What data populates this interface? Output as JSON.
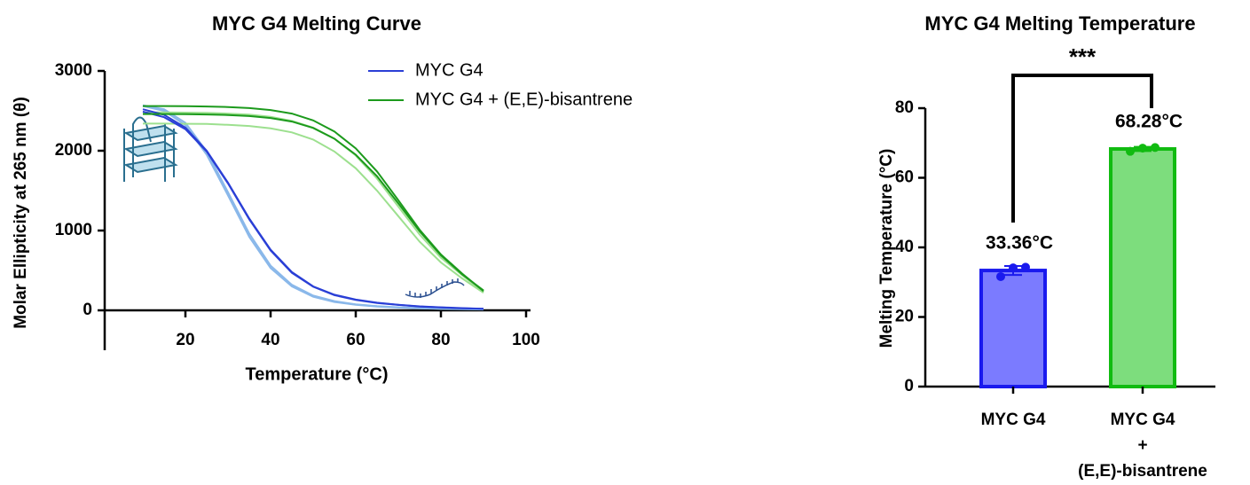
{
  "chart_data": [
    {
      "type": "line",
      "title": "MYC G4 Melting Curve",
      "xlabel": "Temperature (°C)",
      "ylabel": "Molar Ellipticity at 265 nm (θ)",
      "x": [
        10,
        15,
        20,
        25,
        30,
        35,
        40,
        45,
        50,
        55,
        60,
        65,
        70,
        75,
        80,
        85,
        90
      ],
      "xlim": [
        0,
        100
      ],
      "xticks": [
        20,
        40,
        60,
        80,
        100
      ],
      "ylim": [
        -500,
        3000
      ],
      "yticks": [
        0,
        1000,
        2000,
        3000
      ],
      "series": [
        {
          "name": "MYC G4",
          "color": "#2a3fd6",
          "values": [
            2520,
            2450,
            2290,
            2000,
            1600,
            1150,
            760,
            480,
            300,
            195,
            135,
            95,
            70,
            50,
            38,
            28,
            20
          ]
        },
        {
          "color": "#2a3fd6",
          "values": [
            2490,
            2420,
            2270,
            1990,
            1590,
            1140,
            750,
            470,
            295,
            190,
            130,
            92,
            68,
            48,
            36,
            26,
            19
          ]
        },
        {
          "color": "#8ab8ea",
          "values": [
            2570,
            2520,
            2350,
            1990,
            1480,
            960,
            560,
            320,
            185,
            115,
            75,
            52,
            38,
            28,
            20,
            15,
            12
          ]
        },
        {
          "color": "#8ab8ea",
          "values": [
            2560,
            2500,
            2320,
            1950,
            1440,
            920,
            530,
            300,
            170,
            105,
            70,
            48,
            35,
            25,
            18,
            13,
            10
          ]
        },
        {
          "name": "MYC G4 + (E,E)-bisantrene",
          "color": "#1c9a1c",
          "values": [
            2560,
            2560,
            2558,
            2555,
            2548,
            2535,
            2510,
            2465,
            2380,
            2240,
            2030,
            1740,
            1380,
            1010,
            700,
            460,
            240
          ]
        },
        {
          "color": "#1c9a1c",
          "values": [
            2460,
            2460,
            2458,
            2455,
            2448,
            2435,
            2410,
            2365,
            2285,
            2150,
            1950,
            1680,
            1340,
            990,
            690,
            450,
            250
          ]
        },
        {
          "color": "#9de08f",
          "values": [
            2340,
            2340,
            2338,
            2335,
            2325,
            2310,
            2280,
            2230,
            2140,
            1990,
            1780,
            1500,
            1180,
            860,
            600,
            400,
            220
          ]
        },
        {
          "color": "#9de08f",
          "values": [
            2480,
            2480,
            2478,
            2474,
            2466,
            2452,
            2425,
            2375,
            2290,
            2150,
            1940,
            1650,
            1300,
            950,
            660,
            440,
            230
          ]
        }
      ]
    },
    {
      "type": "bar",
      "title": "MYC G4 Melting Temperature",
      "ylabel": "Melting Temperature (°C)",
      "categories": [
        "MYC G4",
        "MYC G4 + (E,E)-bisantrene"
      ],
      "values": [
        33.36,
        68.28
      ],
      "value_labels": [
        "33.36°C",
        "68.28°C"
      ],
      "errors": [
        1.3,
        0.6
      ],
      "points": [
        [
          31.6,
          34.1,
          34.3
        ],
        [
          67.6,
          68.5,
          68.7
        ]
      ],
      "colors": [
        "#7b7bff",
        "#7ddd7d"
      ],
      "edge_colors": [
        "#1a1aee",
        "#11bb11"
      ],
      "ylim": [
        0,
        80
      ],
      "yticks": [
        0,
        20,
        40,
        60,
        80
      ],
      "significance": "***"
    }
  ]
}
